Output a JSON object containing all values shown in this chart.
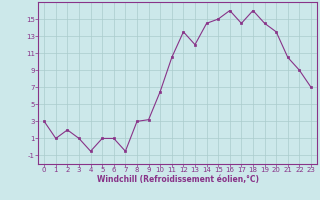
{
  "x": [
    0,
    1,
    2,
    3,
    4,
    5,
    6,
    7,
    8,
    9,
    10,
    11,
    12,
    13,
    14,
    15,
    16,
    17,
    18,
    19,
    20,
    21,
    22,
    23
  ],
  "y": [
    3,
    1,
    2,
    1,
    -0.5,
    1,
    1,
    -0.5,
    3,
    3.2,
    6.5,
    10.5,
    13.5,
    12,
    14.5,
    15,
    16,
    14.5,
    16,
    14.5,
    13.5,
    10.5,
    9,
    7
  ],
  "line_color": "#883388",
  "marker_color": "#883388",
  "bg_color": "#cce8ea",
  "grid_color": "#aacccc",
  "xlabel": "Windchill (Refroidissement éolien,°C)",
  "xlabel_color": "#883388",
  "tick_color": "#883388",
  "spine_color": "#883388",
  "xlim": [
    -0.5,
    23.5
  ],
  "ylim": [
    -2,
    17
  ],
  "yticks": [
    -1,
    1,
    3,
    5,
    7,
    9,
    11,
    13,
    15
  ],
  "xticks": [
    0,
    1,
    2,
    3,
    4,
    5,
    6,
    7,
    8,
    9,
    10,
    11,
    12,
    13,
    14,
    15,
    16,
    17,
    18,
    19,
    20,
    21,
    22,
    23
  ],
  "xtick_labels": [
    "0",
    "1",
    "2",
    "3",
    "4",
    "5",
    "6",
    "7",
    "8",
    "9",
    "10",
    "11",
    "12",
    "13",
    "14",
    "15",
    "16",
    "17",
    "18",
    "19",
    "20",
    "21",
    "22",
    "23"
  ],
  "ytick_labels": [
    "-1",
    "1",
    "3",
    "5",
    "7",
    "9",
    "11",
    "13",
    "15"
  ],
  "tick_fontsize": 5,
  "xlabel_fontsize": 5.5
}
